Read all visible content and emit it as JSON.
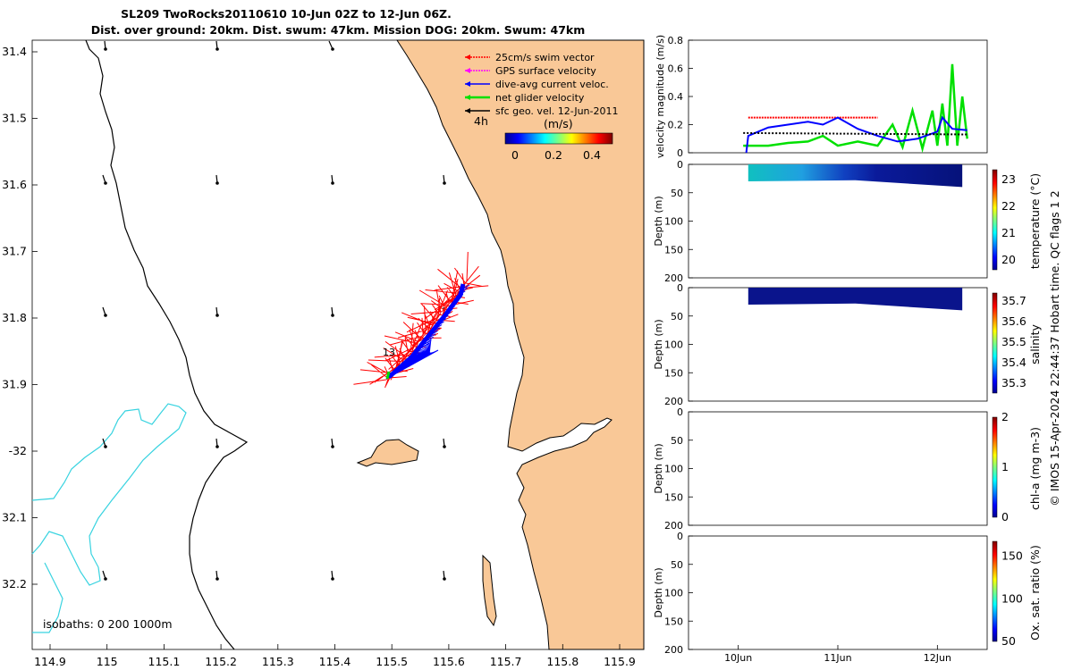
{
  "title": {
    "line1": "SL209 TwoRocks20110610 10-Jun 02Z to 12-Jun 06Z.",
    "line2": "Dist. over ground: 20km. Dist. swum: 47km. Mission DOG: 20km. Swum: 47km"
  },
  "colors": {
    "land": "#f9c897",
    "isobath": "#38d3e0",
    "swim": "#ff0000",
    "gps": "#ff00ff",
    "dive_avg": "#0000ff",
    "net": "#00e000",
    "sfc_geo": "#000000"
  },
  "map": {
    "lon_ticks": [
      "114.9",
      "115",
      "115.1",
      "115.2",
      "115.3",
      "115.4",
      "115.5",
      "115.6",
      "115.7",
      "115.8",
      "115.9"
    ],
    "lat_ticks": [
      "31.4",
      "31.5",
      "31.6",
      "31.7",
      "31.8",
      "31.9",
      "-32",
      "32.1",
      "32.2"
    ],
    "legend": [
      {
        "label": "25cm/s swim vector",
        "color": "#ff0000"
      },
      {
        "label": "GPS surface velocity",
        "color": "#ff00ff"
      },
      {
        "label": "dive-avg current veloc.",
        "color": "#0000ff"
      },
      {
        "label": "net glider velocity",
        "color": "#00e000"
      },
      {
        "label": "sfc geo. vel. 12-Jun-2011",
        "color": "#000000"
      }
    ],
    "time_label": "4h",
    "colorbar": {
      "label": "(m/s)",
      "ticks": [
        "0",
        "0.2",
        "0.4"
      ]
    },
    "isobaths_label": "isobaths: 0   200  1000m",
    "track_label": "13"
  },
  "chart_data": [
    {
      "type": "line",
      "title": "",
      "ylabel": "velocity magnitude (m/s)",
      "ylim": [
        0,
        0.8
      ],
      "yticks": [
        "0",
        "0.2",
        "0.4",
        "0.6",
        "0.8"
      ],
      "x_ticks": [
        "10Jun",
        "11Jun",
        "12Jun"
      ],
      "series": [
        {
          "name": "swim vector",
          "color": "#ff0000",
          "x": [
            10.1,
            10.5,
            11.0,
            11.4
          ],
          "y": [
            0.25,
            0.25,
            0.25,
            0.25
          ]
        },
        {
          "name": "net glider velocity",
          "color": "#00e000",
          "x": [
            10.05,
            10.1,
            10.3,
            10.5,
            10.7,
            10.85,
            11.0,
            11.2,
            11.4,
            11.55,
            11.65,
            11.75,
            11.85,
            11.95,
            12.0,
            12.05,
            12.1,
            12.15,
            12.2,
            12.25,
            12.3
          ],
          "y": [
            0.05,
            0.05,
            0.05,
            0.07,
            0.08,
            0.12,
            0.05,
            0.08,
            0.05,
            0.2,
            0.04,
            0.3,
            0.03,
            0.3,
            0.05,
            0.35,
            0.05,
            0.63,
            0.05,
            0.4,
            0.1
          ]
        },
        {
          "name": "dive-avg current veloc.",
          "color": "#0000ff",
          "x": [
            10.08,
            10.1,
            10.3,
            10.5,
            10.7,
            10.85,
            11.0,
            11.2,
            11.4,
            11.6,
            11.8,
            12.0,
            12.05,
            12.15,
            12.3
          ],
          "y": [
            0.0,
            0.12,
            0.18,
            0.2,
            0.22,
            0.2,
            0.25,
            0.17,
            0.12,
            0.08,
            0.1,
            0.15,
            0.25,
            0.17,
            0.16
          ]
        },
        {
          "name": "sfc geo. vel.",
          "color": "#000000",
          "x": [
            10.05,
            12.3
          ],
          "y": [
            0.14,
            0.13
          ]
        }
      ]
    },
    {
      "type": "heatmap",
      "ylabel": "Depth (m)",
      "colorbar_label": "temperature (°C)",
      "ylim": [
        200,
        0
      ],
      "yticks": [
        "0",
        "50",
        "100",
        "150",
        "200"
      ],
      "cticks": [
        "20",
        "21",
        "22",
        "23"
      ],
      "x_range": [
        10.1,
        12.25
      ],
      "depth_range": [
        0,
        40
      ]
    },
    {
      "type": "heatmap",
      "ylabel": "Depth (m)",
      "colorbar_label": "salinity",
      "ylim": [
        200,
        0
      ],
      "yticks": [
        "0",
        "50",
        "100",
        "150",
        "200"
      ],
      "cticks": [
        "35.3",
        "35.4",
        "35.5",
        "35.6",
        "35.7"
      ],
      "x_range": [
        10.1,
        12.25
      ],
      "depth_range": [
        0,
        40
      ]
    },
    {
      "type": "heatmap",
      "ylabel": "Depth (m)",
      "colorbar_label": "chl-a (mg m-3)",
      "ylim": [
        200,
        0
      ],
      "yticks": [
        "0",
        "50",
        "100",
        "150",
        "200"
      ],
      "cticks": [
        "0",
        "1",
        "2"
      ]
    },
    {
      "type": "heatmap",
      "ylabel": "Depth (m)",
      "colorbar_label": "Ox. sat. ratio (%)",
      "ylim": [
        200,
        0
      ],
      "yticks": [
        "0",
        "50",
        "100",
        "150",
        "200"
      ],
      "cticks": [
        "50",
        "100",
        "150"
      ]
    }
  ],
  "footer": "© IMOS 15-Apr-2024 22:44:37 Hobart time. QC flags 1  2"
}
